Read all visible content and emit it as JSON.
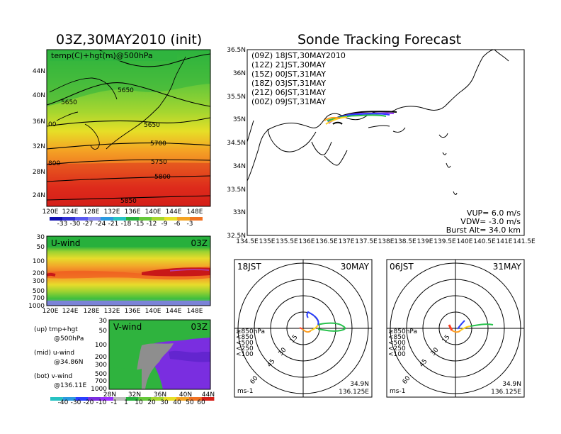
{
  "colors": {
    "purple": "#9b30ff",
    "blue": "#2a3fff",
    "green": "#27c24c",
    "orange": "#ff9d1f",
    "red": "#ff3b1f",
    "magenta": "#c000c0"
  },
  "left": {
    "title": "03Z,30MAY2010 (init)",
    "map_label": "temp(C)+hgt(m)@500hPa",
    "lat_ticks": [
      "44N",
      "40N",
      "36N",
      "32N",
      "28N",
      "24N"
    ],
    "lon_ticks": [
      "120E",
      "124E",
      "128E",
      "132E",
      "136E",
      "140E",
      "144E",
      "148E"
    ],
    "contour_labels": [
      "5650",
      "5650",
      "5650",
      "00",
      "5700",
      "5750",
      "800",
      "5800",
      "5850"
    ],
    "temp_colorbar": [
      "-33",
      "-30",
      "-27",
      "-24",
      "-21",
      "-18",
      "-15",
      "-12",
      "-9",
      "-6",
      "-3"
    ],
    "uwind": {
      "label": "U-wind",
      "time": "03Z",
      "p_ticks": [
        "30",
        "50",
        "100",
        "200",
        "300",
        "500",
        "700",
        "1000"
      ],
      "lon_ticks": [
        "120E",
        "124E",
        "128E",
        "132E",
        "136E",
        "140E",
        "144E",
        "148E"
      ]
    },
    "vwind": {
      "label": "V-wind",
      "time": "03Z",
      "p_ticks": [
        "30",
        "50",
        "100",
        "200",
        "300",
        "500",
        "700",
        "1000"
      ],
      "lat_ticks": [
        "28N",
        "32N",
        "36N",
        "40N",
        "44N"
      ]
    },
    "legend": [
      "(up) tmp+hgt",
      "@500hPa",
      "(mid) u-wind",
      "@34.86N",
      "(bot) v-wind",
      "@136.11E"
    ],
    "wind_colorbar": [
      "-40",
      "-30",
      "-20",
      "-10",
      "-1",
      "1",
      "10",
      "20",
      "30",
      "40",
      "50",
      "60"
    ]
  },
  "right": {
    "title": "Sonde Tracking Forecast",
    "lat_ticks": [
      "36.5N",
      "36N",
      "35.5N",
      "35N",
      "34.5N",
      "34N",
      "33.5N",
      "33N",
      "32.5N"
    ],
    "lon_ticks": [
      "134.5E",
      "135E",
      "135.5E",
      "136E",
      "136.5E",
      "137E",
      "137.5E",
      "138E",
      "138.5E",
      "139E",
      "139.5E",
      "140E",
      "140.5E",
      "141E",
      "141.5E"
    ],
    "legend": [
      {
        "text": "(09Z)  18JST,30MAY2010",
        "color": "#000000"
      },
      {
        "text": "(12Z)  21JST,30MAY",
        "color": "#9b30ff"
      },
      {
        "text": "(15Z)  00JST,31MAY",
        "color": "#2a3fff"
      },
      {
        "text": "(18Z)  03JST,31MAY",
        "color": "#27c24c"
      },
      {
        "text": "(21Z)  06JST,31MAY",
        "color": "#ffd21f"
      },
      {
        "text": "(00Z)  09JST,31MAY",
        "color": "#ff9d1f"
      }
    ],
    "params": [
      "VUP=  6.0  m/s",
      "VDW= -3.0  m/s",
      "Burst Alt=  34.0  km"
    ],
    "polar": [
      {
        "time": "18JST",
        "date": "30MAY",
        "rings": [
          "15",
          "30",
          "45",
          "60"
        ],
        "levels": [
          "≥850hPa",
          "<850",
          "<500",
          "<250",
          "<100"
        ],
        "unit": "ms-1",
        "lat": "34.9N",
        "lon": "136.125E"
      },
      {
        "time": "06JST",
        "date": "31MAY",
        "rings": [
          "15",
          "30",
          "45",
          "60"
        ],
        "levels": [
          "≥850hPa",
          "<850",
          "<500",
          "<250",
          "<100"
        ],
        "unit": "ms-1",
        "lat": "34.9N",
        "lon": "136.125E"
      }
    ]
  }
}
